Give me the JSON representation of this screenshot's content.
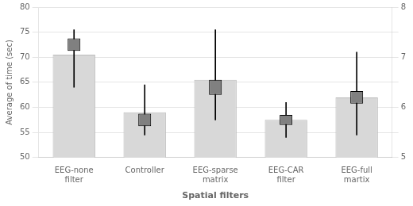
{
  "chart_data": {
    "type": "bar",
    "categories": [
      "EEG-none filter",
      "Controller",
      "EEG-sparse matrix",
      "EEG-CAR filter",
      "EEG-full martix"
    ],
    "values": [
      70.5,
      59.0,
      65.5,
      57.5,
      62.0
    ],
    "color": "#d8d8d8",
    "boxes": {
      "color": "#808080",
      "box_low": [
        71.25,
        56.25,
        62.5,
        56.5,
        60.75
      ],
      "box_high": [
        73.75,
        58.75,
        65.5,
        58.5,
        63.25
      ],
      "whisker_low": [
        64.0,
        54.5,
        57.5,
        54.0,
        54.5
      ],
      "whisker_high": [
        75.5,
        64.5,
        75.5,
        61.0,
        71.0
      ]
    },
    "xlabel": "Spatial filters",
    "ylabel": "Average of time (sec)",
    "ylim": [
      50,
      80
    ],
    "yticks": [
      50,
      55,
      60,
      65,
      70,
      75,
      80
    ],
    "y2lim": [
      5,
      8
    ],
    "y2ticks": [
      5,
      {
        "value": 5.5,
        "label": null
      },
      6,
      {
        "value": 6.5,
        "label": null
      },
      7,
      {
        "value": 7.5,
        "label": null
      },
      8
    ],
    "grid": true
  }
}
